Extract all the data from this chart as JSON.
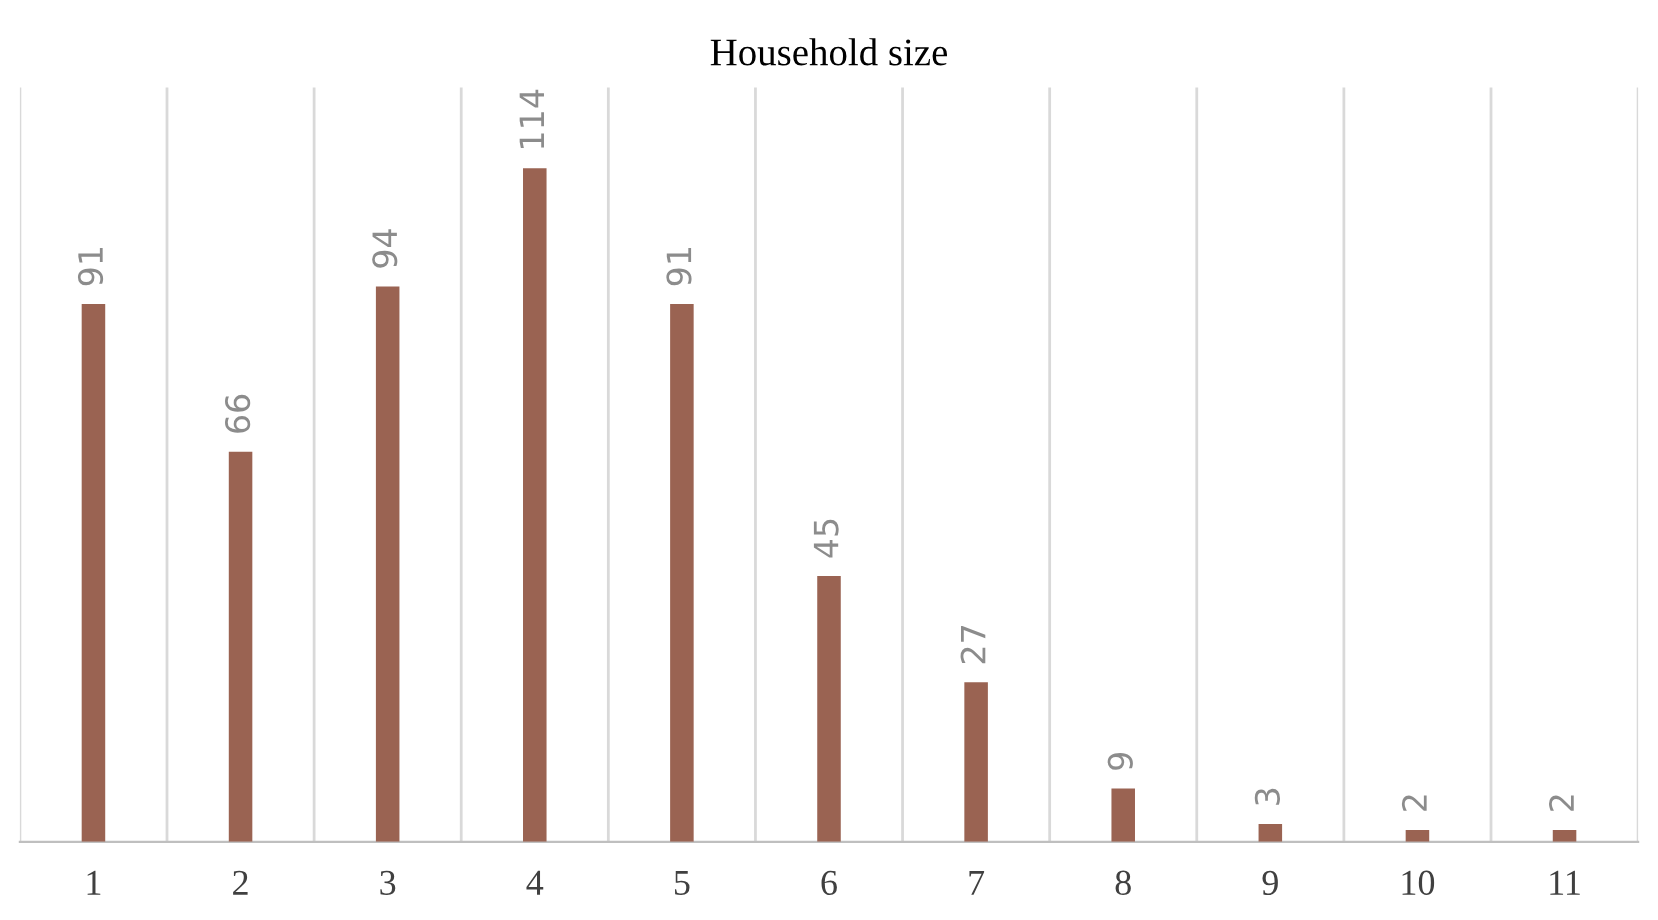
{
  "chart_data": {
    "type": "bar",
    "title": "Household size",
    "categories": [
      "1",
      "2",
      "3",
      "4",
      "5",
      "6",
      "7",
      "8",
      "9",
      "10",
      "11"
    ],
    "values": [
      91,
      66,
      94,
      114,
      91,
      45,
      27,
      9,
      3,
      2,
      2
    ],
    "color": "#9a6352",
    "data_labels": true,
    "grid": "x"
  }
}
